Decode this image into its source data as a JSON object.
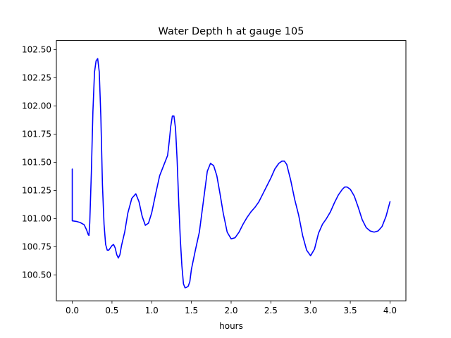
{
  "chart_data": {
    "type": "line",
    "title": "Water Depth h at gauge 105",
    "xlabel": "hours",
    "ylabel": "",
    "xlim": [
      -0.2,
      4.2
    ],
    "ylim": [
      100.27,
      102.58
    ],
    "xticks": [
      {
        "value": 0.0,
        "label": "0.0"
      },
      {
        "value": 0.5,
        "label": "0.5"
      },
      {
        "value": 1.0,
        "label": "1.0"
      },
      {
        "value": 1.5,
        "label": "1.5"
      },
      {
        "value": 2.0,
        "label": "2.0"
      },
      {
        "value": 2.5,
        "label": "2.5"
      },
      {
        "value": 3.0,
        "label": "3.0"
      },
      {
        "value": 3.5,
        "label": "3.5"
      },
      {
        "value": 4.0,
        "label": "4.0"
      }
    ],
    "yticks": [
      {
        "value": 100.5,
        "label": "100.50"
      },
      {
        "value": 100.75,
        "label": "100.75"
      },
      {
        "value": 101.0,
        "label": "101.00"
      },
      {
        "value": 101.25,
        "label": "101.25"
      },
      {
        "value": 101.5,
        "label": "101.50"
      },
      {
        "value": 101.75,
        "label": "101.75"
      },
      {
        "value": 102.0,
        "label": "102.00"
      },
      {
        "value": 102.25,
        "label": "102.25"
      },
      {
        "value": 102.5,
        "label": "102.50"
      }
    ],
    "grid": false,
    "series": [
      {
        "color": "#0000ff",
        "x": [
          0.0,
          0.0,
          0.05,
          0.1,
          0.15,
          0.18,
          0.2,
          0.21,
          0.22,
          0.24,
          0.26,
          0.28,
          0.3,
          0.32,
          0.34,
          0.36,
          0.38,
          0.4,
          0.42,
          0.44,
          0.46,
          0.48,
          0.5,
          0.52,
          0.54,
          0.56,
          0.58,
          0.6,
          0.62,
          0.64,
          0.66,
          0.7,
          0.75,
          0.8,
          0.84,
          0.88,
          0.92,
          0.96,
          1.0,
          1.05,
          1.1,
          1.15,
          1.2,
          1.22,
          1.24,
          1.26,
          1.28,
          1.3,
          1.32,
          1.34,
          1.36,
          1.38,
          1.4,
          1.42,
          1.44,
          1.46,
          1.48,
          1.5,
          1.55,
          1.6,
          1.65,
          1.7,
          1.74,
          1.78,
          1.82,
          1.86,
          1.9,
          1.95,
          2.0,
          2.05,
          2.1,
          2.15,
          2.2,
          2.25,
          2.3,
          2.35,
          2.4,
          2.45,
          2.5,
          2.55,
          2.6,
          2.64,
          2.67,
          2.7,
          2.75,
          2.8,
          2.85,
          2.9,
          2.95,
          3.0,
          3.05,
          3.1,
          3.15,
          3.2,
          3.25,
          3.3,
          3.35,
          3.4,
          3.43,
          3.46,
          3.5,
          3.55,
          3.6,
          3.65,
          3.7,
          3.75,
          3.8,
          3.85,
          3.9,
          3.95,
          4.0
        ],
        "y": [
          101.44,
          100.98,
          100.975,
          100.965,
          100.945,
          100.9,
          100.86,
          100.85,
          100.96,
          101.4,
          101.95,
          102.3,
          102.4,
          102.42,
          102.3,
          101.9,
          101.3,
          100.95,
          100.77,
          100.72,
          100.72,
          100.74,
          100.76,
          100.77,
          100.74,
          100.68,
          100.65,
          100.68,
          100.76,
          100.82,
          100.88,
          101.05,
          101.18,
          101.22,
          101.15,
          101.02,
          100.94,
          100.96,
          101.05,
          101.22,
          101.38,
          101.47,
          101.56,
          101.68,
          101.82,
          101.91,
          101.91,
          101.8,
          101.52,
          101.15,
          100.82,
          100.58,
          100.42,
          100.385,
          100.39,
          100.4,
          100.44,
          100.55,
          100.72,
          100.88,
          101.15,
          101.42,
          101.49,
          101.47,
          101.38,
          101.22,
          101.05,
          100.88,
          100.82,
          100.83,
          100.88,
          100.95,
          101.01,
          101.06,
          101.1,
          101.15,
          101.22,
          101.29,
          101.36,
          101.44,
          101.49,
          101.51,
          101.51,
          101.48,
          101.34,
          101.17,
          101.03,
          100.85,
          100.72,
          100.67,
          100.73,
          100.87,
          100.95,
          101.0,
          101.06,
          101.14,
          101.21,
          101.26,
          101.28,
          101.28,
          101.26,
          101.2,
          101.1,
          100.99,
          100.92,
          100.89,
          100.88,
          100.89,
          100.93,
          101.02,
          101.15
        ]
      }
    ]
  }
}
